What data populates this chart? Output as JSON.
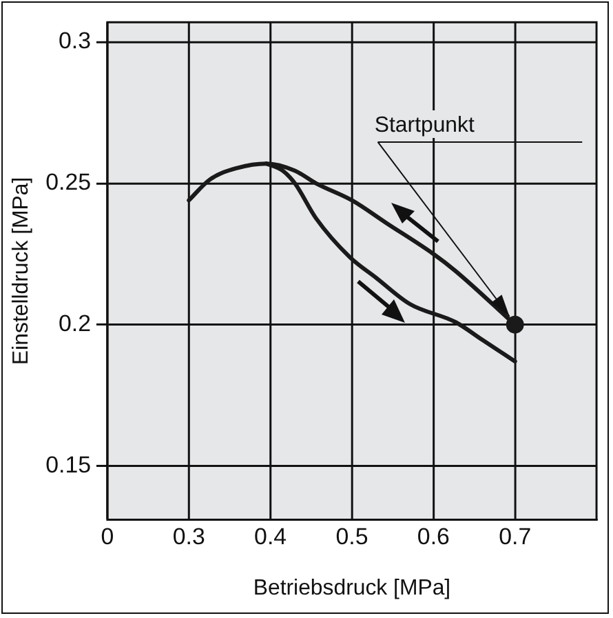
{
  "chart_data": {
    "type": "line",
    "xlabel": "Betriebsdruck [MPa]",
    "ylabel": "Einstelldruck [MPa]",
    "xlim": [
      0.2,
      0.8
    ],
    "xticks": [
      {
        "value": 0.2,
        "label": "0"
      },
      0.3,
      0.4,
      0.5,
      0.6,
      0.7
    ],
    "ylim": [
      0.131,
      0.307
    ],
    "yticks": [
      0.15,
      0.2,
      0.25,
      0.3
    ],
    "grid": true,
    "legend": false,
    "line_style": "solid",
    "series": [
      {
        "color": "#1a1a1a",
        "marker": "none",
        "x": [
          0.3,
          0.326,
          0.36,
          0.395,
          0.43,
          0.456,
          0.5,
          0.542,
          0.6,
          0.627,
          0.7
        ],
        "values": [
          0.244,
          0.2514,
          0.2555,
          0.257,
          0.2545,
          0.25,
          0.244,
          0.236,
          0.225,
          0.219,
          0.2
        ]
      },
      {
        "color": "#1a1a1a",
        "marker": "none",
        "x": [
          0.395,
          0.415,
          0.43,
          0.456,
          0.497,
          0.53,
          0.571,
          0.627,
          0.66,
          0.7
        ],
        "values": [
          0.257,
          0.2545,
          0.25,
          0.2376,
          0.224,
          0.2165,
          0.2073,
          0.2009,
          0.1946,
          0.187
        ]
      },
      {
        "type": "scatter",
        "marker": "circle",
        "color": "#1a1a1a",
        "x": [
          0.7
        ],
        "values": [
          0.2
        ]
      }
    ],
    "annotations": [
      {
        "text": "Startpunkt",
        "x": 0.7,
        "y": 0.2
      }
    ]
  }
}
